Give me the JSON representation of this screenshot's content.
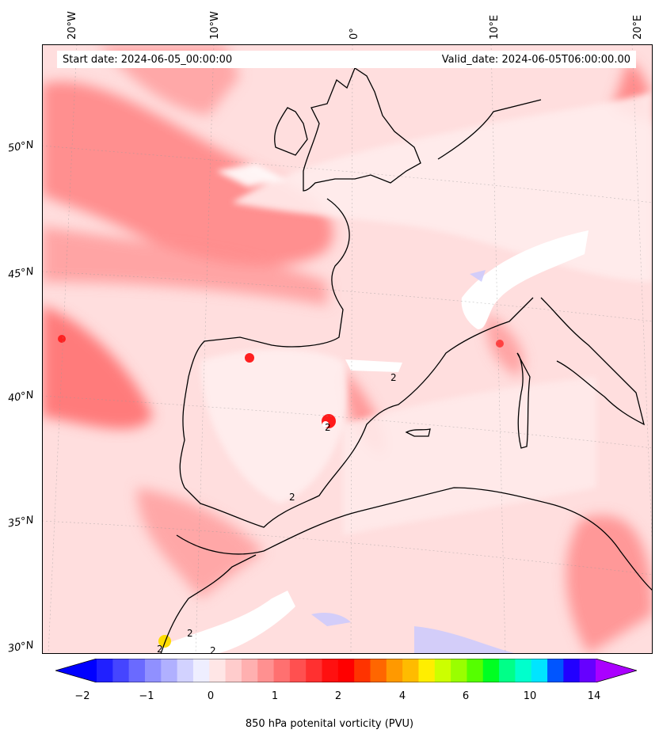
{
  "header": {
    "start_date": "Start date: 2024-06-05_00:00:00",
    "valid_date": "Valid_date: 2024-06-05T06:00:00.00"
  },
  "longitude_labels": [
    "20°W",
    "10°W",
    "0°",
    "10°E",
    "20°E"
  ],
  "latitude_labels": [
    "50°N",
    "45°N",
    "40°N",
    "35°N",
    "30°N"
  ],
  "colorbar": {
    "title": "850 hPa potenital vorticity (PVU)",
    "tick_labels": [
      "−2",
      "−1",
      "0",
      "1",
      "2",
      "4",
      "6",
      "10",
      "14"
    ],
    "colors": [
      "#0000ff",
      "#2020ff",
      "#4545ff",
      "#6a6aff",
      "#9090ff",
      "#b0b0ff",
      "#d2d2ff",
      "#eeeeff",
      "#ffe6e6",
      "#ffcccc",
      "#ffb0b0",
      "#ff9090",
      "#ff7070",
      "#ff5050",
      "#ff3030",
      "#ff1010",
      "#ff0000",
      "#ff3300",
      "#ff6600",
      "#ff9900",
      "#ffbb00",
      "#ffee00",
      "#ccff00",
      "#99ff00",
      "#55ff00",
      "#00ff22",
      "#00ff88",
      "#00ffcc",
      "#00e5ff",
      "#0055ff",
      "#2200ff",
      "#6600ff",
      "#aa00ff"
    ]
  },
  "contour_labels": [
    "2",
    "2",
    "2",
    "2",
    "2",
    "2"
  ]
}
